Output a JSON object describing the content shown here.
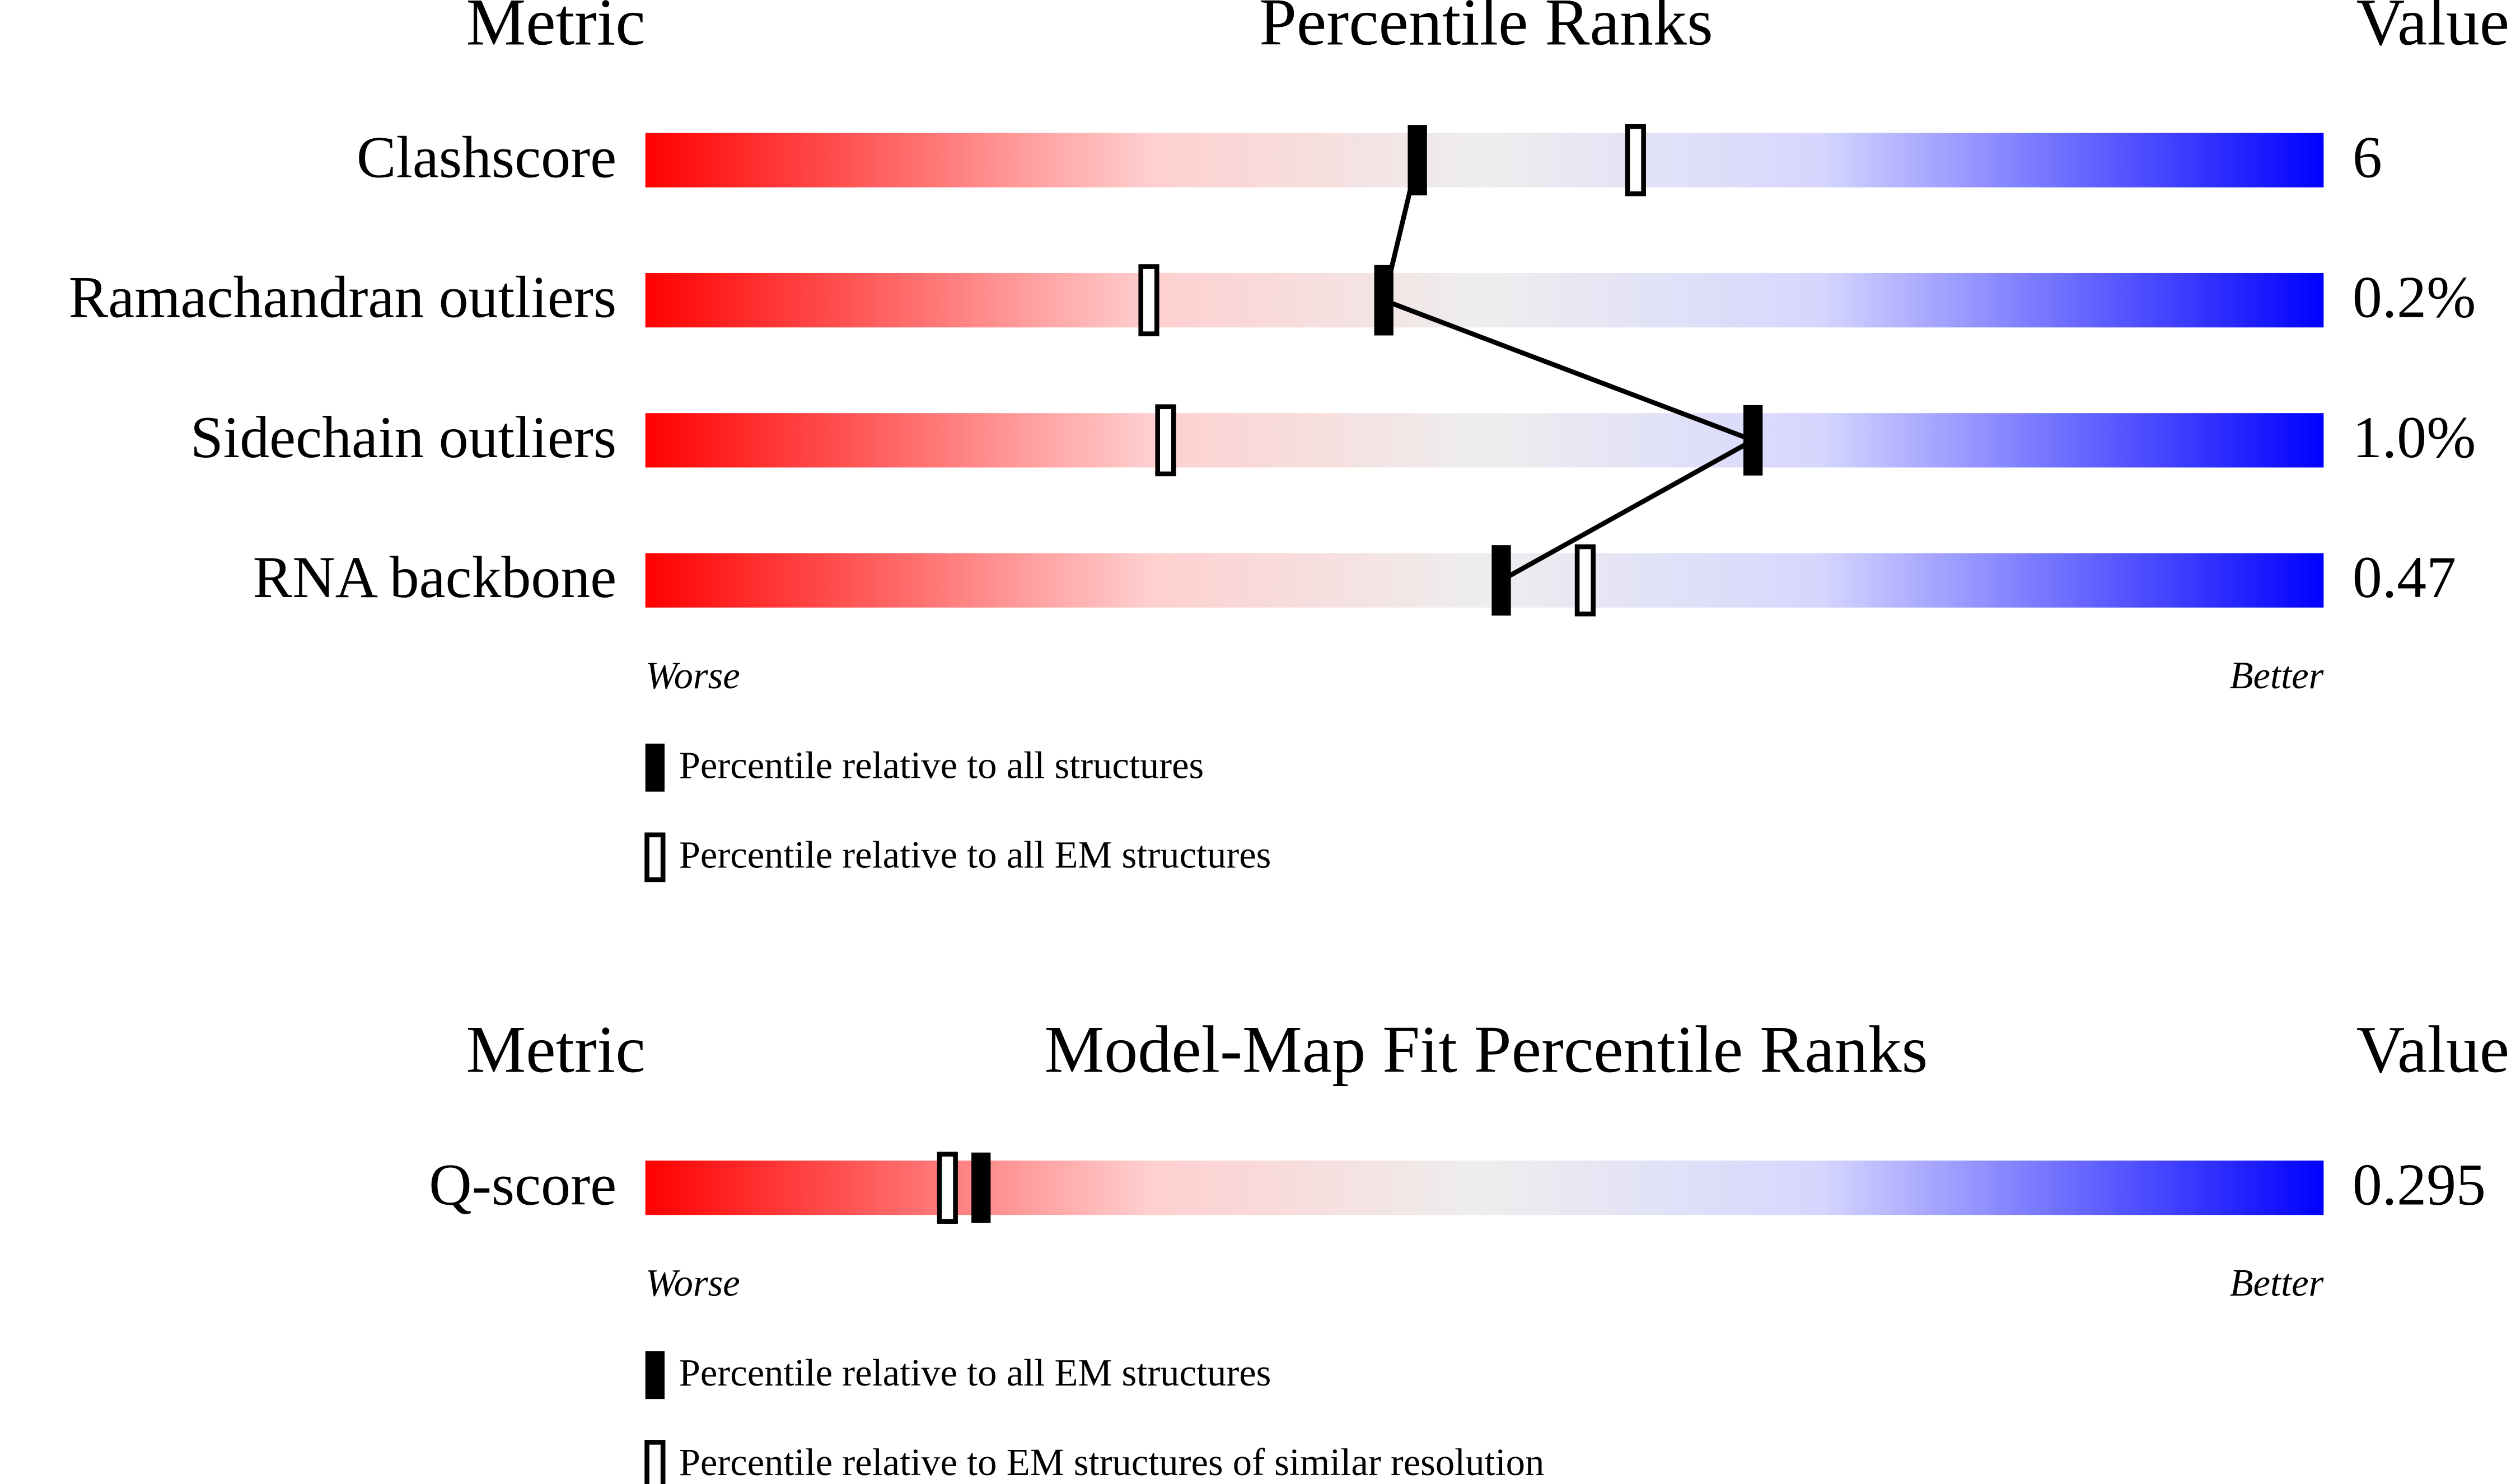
{
  "chart_data": [
    {
      "type": "percentile",
      "title": "Percentile Ranks",
      "metric_header": "Metric",
      "value_header": "Value",
      "categories": [
        "Clashscore",
        "Ramachandran outliers",
        "Sidechain outliers",
        "RNA backbone"
      ],
      "metric_values": [
        "6",
        "0.2%",
        "1.0%",
        "0.47"
      ],
      "xlim": [
        0,
        100
      ],
      "worse_label": "Worse",
      "better_label": "Better",
      "series": [
        {
          "name": "Percentile relative to all structures",
          "color": "#000000",
          "filled": true,
          "values": [
            46,
            44,
            66,
            51
          ]
        },
        {
          "name": "Percentile relative to all EM structures",
          "color": "#000000",
          "filled": false,
          "values": [
            59,
            30,
            31,
            56
          ]
        }
      ]
    },
    {
      "type": "percentile",
      "title": "Model-Map Fit Percentile Ranks",
      "metric_header": "Metric",
      "value_header": "Value",
      "categories": [
        "Q-score"
      ],
      "metric_values": [
        "0.295"
      ],
      "xlim": [
        0,
        100
      ],
      "worse_label": "Worse",
      "better_label": "Better",
      "series": [
        {
          "name": "Percentile relative to all EM structures",
          "color": "#000000",
          "filled": true,
          "values": [
            20
          ]
        },
        {
          "name": "Percentile relative to EM structures of similar resolution",
          "color": "#000000",
          "filled": false,
          "values": [
            18
          ]
        }
      ]
    }
  ]
}
